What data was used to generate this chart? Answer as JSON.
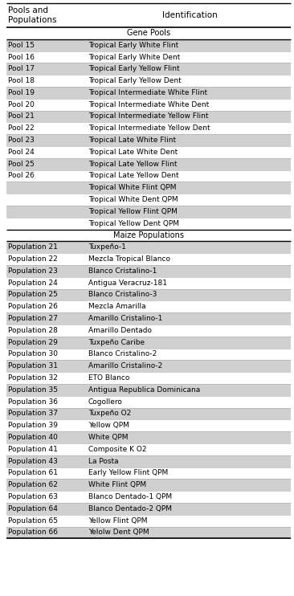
{
  "col_header_1": "Pools and\nPopulations",
  "col_header_2": "Identification",
  "section_gene_pools_label": "Gene Pools",
  "section_maize_pops_label": "Maize Populations",
  "gene_pools": [
    [
      "Pool 15",
      "Tropical Early White Flint"
    ],
    [
      "Pool 16",
      "Tropical Early White Dent"
    ],
    [
      "Pool 17",
      "Tropical Early Yellow Flint"
    ],
    [
      "Pool 18",
      "Tropical Early Yellow Dent"
    ],
    [
      "Pool 19",
      "Tropical Intermediate White Flint"
    ],
    [
      "Pool 20",
      "Tropical Intermediate White Dent"
    ],
    [
      "Pool 21",
      "Tropical Intermediate Yellow Flint"
    ],
    [
      "Pool 22",
      "Tropical Intermediate Yellow Dent"
    ],
    [
      "Pool 23",
      "Tropical Late White Flint"
    ],
    [
      "Pool 24",
      "Tropical Late White Dent"
    ],
    [
      "Pool 25",
      "Tropical Late Yellow Flint"
    ],
    [
      "Pool 26",
      "Tropical Late Yellow Dent"
    ],
    [
      "",
      "Tropical White Flint QPM"
    ],
    [
      "",
      "Tropical White Dent QPM"
    ],
    [
      "",
      "Tropical Yellow Flint QPM"
    ],
    [
      "",
      "Tropical Yellow Dent QPM"
    ]
  ],
  "maize_populations": [
    [
      "Population 21",
      "Tuxpeño-1"
    ],
    [
      "Population 22",
      "Mezcla Tropical Blanco"
    ],
    [
      "Population 23",
      "Blanco Cristalino-1"
    ],
    [
      "Population 24",
      "Antigua Veracruz-181"
    ],
    [
      "Population 25",
      "Blanco Cristalino-3"
    ],
    [
      "Population 26",
      "Mezcla Amarilla"
    ],
    [
      "Population 27",
      "Amarillo Cristalino-1"
    ],
    [
      "Population 28",
      "Amarillo Dentado"
    ],
    [
      "Population 29",
      "Tuxpeño Caribe"
    ],
    [
      "Population 30",
      "Blanco Cristalino-2"
    ],
    [
      "Population 31",
      "Amarillo Cristalino-2"
    ],
    [
      "Population 32",
      "ETO Blanco"
    ],
    [
      "Population 35",
      "Antigua Republica Dominicana"
    ],
    [
      "Population 36",
      "Cogollero"
    ],
    [
      "Population 37",
      "Tuxpeño O2"
    ],
    [
      "Population 39",
      "Yellow QPM"
    ],
    [
      "Population 40",
      "White QPM"
    ],
    [
      "Population 41",
      "Composite K O2"
    ],
    [
      "Population 43",
      "La Posta"
    ],
    [
      "Population 61",
      "Early Yellow Flint QPM"
    ],
    [
      "Population 62",
      "White Flint QPM"
    ],
    [
      "Population 63",
      "Blanco Dentado-1 QPM"
    ],
    [
      "Population 64",
      "Blanco Dentado-2 QPM"
    ],
    [
      "Population 65",
      "Yellow Flint QPM"
    ],
    [
      "Population 66",
      "Yelolw Dent QPM"
    ]
  ],
  "shaded_color": "#d0d0d0",
  "white_color": "#ffffff",
  "font_size": 6.5,
  "header_font_size": 7.5,
  "section_font_size": 7.0
}
